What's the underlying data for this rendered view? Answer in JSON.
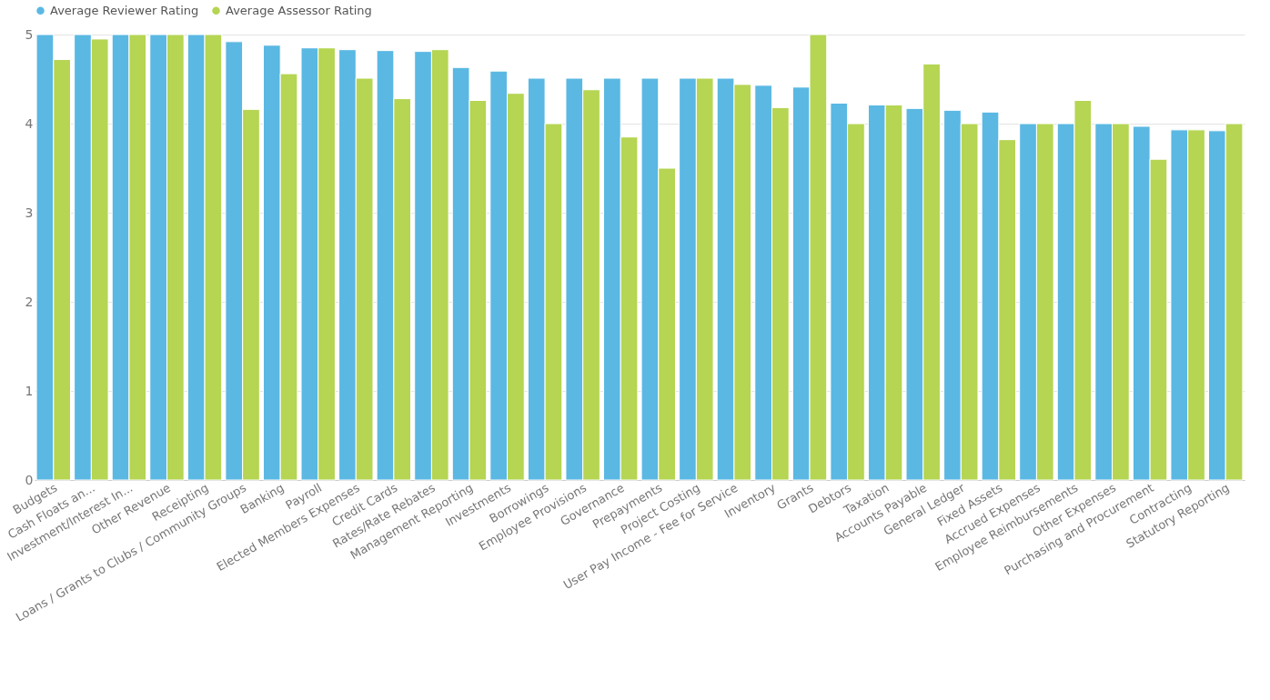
{
  "chart_data": {
    "type": "bar",
    "categories": [
      "Budgets",
      "Cash Floats an...",
      "Investment/Interest In...",
      "Other Revenue",
      "Receipting",
      "Loans / Grants to Clubs / Community Groups",
      "Banking",
      "Payroll",
      "Elected Members Expenses",
      "Credit Cards",
      "Rates/Rate Rebates",
      "Management Reporting",
      "Investments",
      "Borrowings",
      "Employee Provisions",
      "Governance",
      "Prepayments",
      "Project Costing",
      "User Pay Income - Fee for Service",
      "Inventory",
      "Grants",
      "Debtors",
      "Taxation",
      "Accounts Payable",
      "General Ledger",
      "Fixed Assets",
      "Accrued Expenses",
      "Employee Reimbursements",
      "Other Expenses",
      "Purchasing and Procurement",
      "Contracting",
      "Statutory Reporting"
    ],
    "series": [
      {
        "name": "Average Reviewer Rating",
        "color": "#5ab8e3",
        "values": [
          5,
          5,
          5,
          5,
          5,
          4.92,
          4.88,
          4.85,
          4.83,
          4.82,
          4.81,
          4.63,
          4.59,
          4.51,
          4.51,
          4.51,
          4.51,
          4.51,
          4.51,
          4.43,
          4.41,
          4.23,
          4.21,
          4.17,
          4.15,
          4.13,
          4,
          4,
          4,
          3.97,
          3.93,
          3.92
        ]
      },
      {
        "name": "Average Assessor Rating",
        "color": "#b5d553",
        "values": [
          4.72,
          4.95,
          5,
          5,
          5,
          4.16,
          4.56,
          4.85,
          4.51,
          4.28,
          4.83,
          4.26,
          4.34,
          4.0,
          4.38,
          3.85,
          3.5,
          4.51,
          4.44,
          4.18,
          5,
          4,
          4.21,
          4.67,
          4,
          3.82,
          4,
          4.26,
          4,
          3.6,
          3.93,
          4
        ]
      }
    ],
    "ylim": [
      0,
      5
    ],
    "yticks": [
      0,
      1,
      2,
      3,
      4,
      5
    ],
    "grid": "y",
    "legend": "top"
  }
}
